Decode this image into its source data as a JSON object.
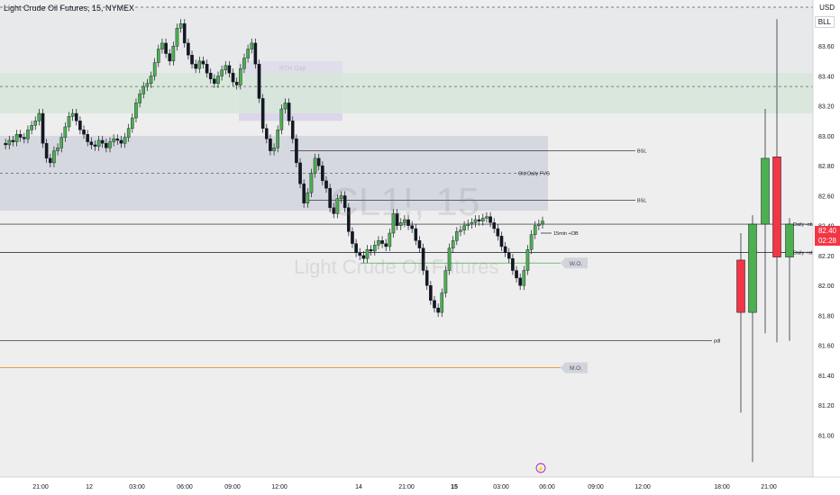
{
  "header": {
    "title": "Light Crude Oil Futures, 15, NYMEX",
    "currency": "USD",
    "unit_button": "BLL"
  },
  "watermark": {
    "symbol": "CL1!, 15",
    "name": "Light Crude Oil Futures"
  },
  "price_tag": {
    "price": "82.40",
    "countdown": "02:28",
    "color": "#f23645"
  },
  "colors": {
    "up": "#4caf50",
    "down": "#f23645",
    "zone_gray": "#d1d4dc",
    "zone_green": "#c8e6c9",
    "zone_purple": "#d1c4e9",
    "line": "#131722",
    "orange_line": "#f57c00"
  },
  "chart_data": {
    "type": "candlestick",
    "y_ticks": [
      "83.60",
      "83.40",
      "83.20",
      "83.00",
      "82.80",
      "82.60",
      "82.40",
      "82.20",
      "82.00",
      "81.80",
      "81.60",
      "81.40",
      "81.20",
      "81.00"
    ],
    "ylim": [
      80.78,
      83.86
    ],
    "x_ticks": [
      "21:00",
      "12",
      "03:00",
      "06:00",
      "09:00",
      "12:00",
      "14",
      "21:00",
      "15",
      "03:00",
      "06:00",
      "09:00",
      "12:00",
      "18:00",
      "21:00"
    ],
    "zones": [
      {
        "label": "RTH Gap",
        "top": 83.5,
        "bottom": 83.1,
        "color": "purple"
      },
      {
        "label": "",
        "top": 83.42,
        "bottom": 83.15,
        "color": "green"
      },
      {
        "label": "Old Daily FVG",
        "top": 83.0,
        "bottom": 82.5,
        "color": "gray"
      }
    ],
    "levels": [
      {
        "label": "BSL",
        "price": 82.9
      },
      {
        "label": "Old Daily FVG",
        "price": 82.75
      },
      {
        "label": "BSL",
        "price": 82.57
      },
      {
        "label": "15min +OB",
        "price": 82.35
      },
      {
        "label": "Daily -ob",
        "price": 82.41
      },
      {
        "label": "Daily +ob",
        "price": 82.22
      },
      {
        "label": "W.O.",
        "price": 82.15
      },
      {
        "label": "pdl",
        "price": 81.63
      },
      {
        "label": "M.O.",
        "price": 81.45
      }
    ],
    "daily_candles": [
      {
        "open": 82.17,
        "close": 81.82,
        "high": 82.35,
        "low": 81.15
      },
      {
        "open": 81.82,
        "close": 82.41,
        "high": 82.47,
        "low": 80.82
      },
      {
        "open": 82.41,
        "close": 82.85,
        "high": 83.18,
        "low": 81.68
      },
      {
        "open": 82.86,
        "close": 82.19,
        "high": 83.78,
        "low": 81.62
      },
      {
        "open": 82.19,
        "close": 82.41,
        "high": 82.45,
        "low": 81.63
      }
    ],
    "series": [
      {
        "name": "",
        "values": [
          82.95,
          82.94,
          82.97,
          82.96,
          83.01,
          82.99,
          82.98,
          83.04,
          83.07,
          83.1,
          83.15,
          82.95,
          82.85,
          82.82,
          82.9,
          82.92,
          82.99,
          83.06,
          83.13,
          83.15,
          83.1,
          83.04,
          83.01,
          82.96,
          82.94,
          82.93,
          82.97,
          82.95,
          82.92,
          82.96,
          82.98,
          82.97,
          82.95,
          82.99,
          83.05,
          83.12,
          83.22,
          83.28,
          83.33,
          83.35,
          83.4,
          83.49,
          83.58,
          83.62,
          83.55,
          83.5,
          83.6,
          83.72,
          83.75,
          83.62,
          83.54,
          83.48,
          83.45,
          83.5,
          83.48,
          83.42,
          83.38,
          83.35,
          83.4,
          83.44,
          83.47,
          83.42,
          83.36,
          83.34,
          83.45,
          83.52,
          83.58,
          83.62,
          83.48,
          83.25,
          83.05,
          82.98,
          82.9,
          82.92,
          83.04,
          83.18,
          83.22,
          83.1,
          82.98,
          82.82,
          82.68,
          82.55,
          82.62,
          82.75,
          82.85,
          82.8,
          82.7,
          82.65,
          82.52,
          82.48,
          82.58,
          82.6,
          82.52,
          82.36,
          82.28,
          82.22,
          82.2,
          82.18,
          82.24,
          82.23,
          82.27,
          82.3,
          82.28,
          82.26,
          82.35,
          82.48,
          82.4,
          82.42,
          82.44,
          82.4,
          82.38,
          82.3,
          82.25,
          82.1,
          82.0,
          81.9,
          81.85,
          81.82,
          81.95,
          82.1,
          82.25,
          82.3,
          82.36,
          82.37,
          82.4,
          82.41,
          82.42,
          82.44,
          82.43,
          82.45,
          82.46,
          82.42,
          82.38,
          82.33,
          82.26,
          82.22,
          82.18,
          82.1,
          82.05,
          82.0,
          82.1,
          82.24,
          82.34,
          82.4,
          82.41,
          82.43
        ]
      }
    ]
  }
}
